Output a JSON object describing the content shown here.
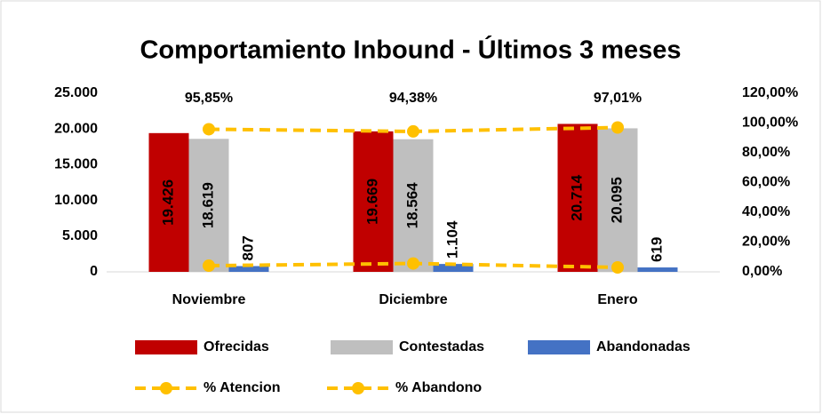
{
  "chart_data": {
    "type": "bar",
    "title": "Comportamiento Inbound - Últimos 3 meses",
    "categories": [
      "Noviembre",
      "Diciembre",
      "Enero"
    ],
    "series": [
      {
        "name": "Ofrecidas",
        "color": "#C00000",
        "values": [
          19426,
          19669,
          20714
        ],
        "value_labels": [
          "19.426",
          "19.669",
          "20.714"
        ]
      },
      {
        "name": "Contestadas",
        "color": "#BFBFBF",
        "values": [
          18619,
          18564,
          20095
        ],
        "value_labels": [
          "18.619",
          "18.564",
          "20.095"
        ]
      },
      {
        "name": "Abandonadas",
        "color": "#4472C4",
        "values": [
          807,
          1104,
          619
        ],
        "value_labels": [
          "807",
          "1.104",
          "619"
        ]
      },
      {
        "name": "% Atencion",
        "type": "line",
        "axis": "y2",
        "color": "#FFC000",
        "values": [
          95.85,
          94.38,
          97.01
        ],
        "value_labels": [
          "95,85%",
          "94,38%",
          "97,01%"
        ]
      },
      {
        "name": "% Abandono",
        "type": "line",
        "axis": "y2",
        "color": "#FFC000",
        "values": [
          4.15,
          5.62,
          2.99
        ]
      }
    ],
    "ylim": [
      0,
      25000
    ],
    "yticks": [
      0,
      {
        "value": 5000,
        "label": "5.000"
      },
      {
        "value": 10000,
        "label": "10.000"
      },
      {
        "value": 15000,
        "label": "15.000"
      },
      {
        "value": 20000,
        "label": "20.000"
      },
      {
        "value": 25000,
        "label": "25.000"
      }
    ],
    "y2lim": [
      0,
      120
    ],
    "y2ticks": [
      {
        "value": 0,
        "label": "0,00%"
      },
      {
        "value": 20,
        "label": "20,00%"
      },
      {
        "value": 40,
        "label": "40,00%"
      },
      {
        "value": 60,
        "label": "60,00%"
      },
      {
        "value": 80,
        "label": "80,00%"
      },
      {
        "value": 100,
        "label": "100,00%"
      },
      {
        "value": 120,
        "label": "120,00%"
      }
    ],
    "legend": "bottom"
  }
}
